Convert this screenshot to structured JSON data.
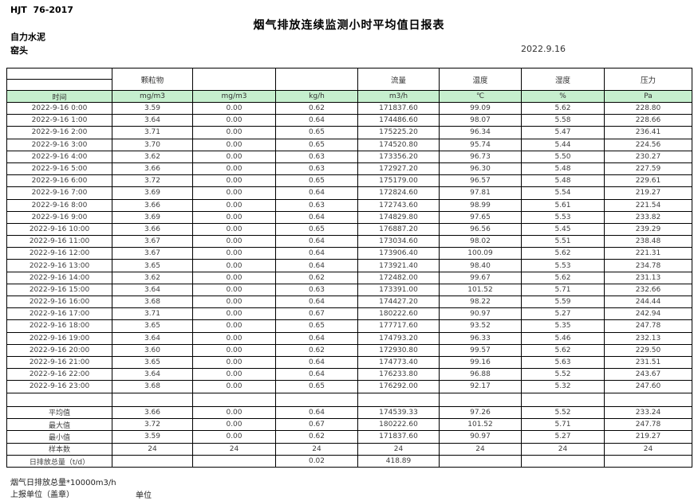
{
  "page": {
    "doc_code": "HJT  76-2017",
    "title": "烟气排放连续监测小时平均值日报表",
    "company": "自力水泥",
    "location": "窑头",
    "date": "2022.9.16"
  },
  "table": {
    "group_headers": [
      "",
      "颗粒物",
      "",
      "",
      "流量",
      "温度",
      "湿度",
      "压力"
    ],
    "unit_row": [
      "时间",
      "mg/m3",
      "mg/m3",
      "kg/h",
      "m3/h",
      "℃",
      "%",
      "Pa"
    ],
    "header_fill": "#c6efce",
    "rows": [
      [
        "2022-9-16 0:00",
        "3.59",
        "0.00",
        "0.62",
        "171837.60",
        "99.09",
        "5.62",
        "228.80"
      ],
      [
        "2022-9-16 1:00",
        "3.64",
        "0.00",
        "0.64",
        "174486.60",
        "98.07",
        "5.58",
        "228.66"
      ],
      [
        "2022-9-16 2:00",
        "3.71",
        "0.00",
        "0.65",
        "175225.20",
        "96.34",
        "5.47",
        "236.41"
      ],
      [
        "2022-9-16 3:00",
        "3.70",
        "0.00",
        "0.65",
        "174520.80",
        "95.74",
        "5.44",
        "224.56"
      ],
      [
        "2022-9-16 4:00",
        "3.62",
        "0.00",
        "0.63",
        "173356.20",
        "96.73",
        "5.50",
        "230.27"
      ],
      [
        "2022-9-16 5:00",
        "3.66",
        "0.00",
        "0.63",
        "172927.20",
        "96.30",
        "5.48",
        "227.59"
      ],
      [
        "2022-9-16 6:00",
        "3.72",
        "0.00",
        "0.65",
        "175179.00",
        "96.57",
        "5.48",
        "229.61"
      ],
      [
        "2022-9-16 7:00",
        "3.69",
        "0.00",
        "0.64",
        "172824.60",
        "97.81",
        "5.54",
        "219.27"
      ],
      [
        "2022-9-16 8:00",
        "3.66",
        "0.00",
        "0.63",
        "172743.60",
        "98.99",
        "5.61",
        "221.54"
      ],
      [
        "2022-9-16 9:00",
        "3.69",
        "0.00",
        "0.64",
        "174829.80",
        "97.65",
        "5.53",
        "233.82"
      ],
      [
        "2022-9-16 10:00",
        "3.66",
        "0.00",
        "0.65",
        "176887.20",
        "96.56",
        "5.45",
        "239.29"
      ],
      [
        "2022-9-16 11:00",
        "3.67",
        "0.00",
        "0.64",
        "173034.60",
        "98.02",
        "5.51",
        "238.48"
      ],
      [
        "2022-9-16 12:00",
        "3.67",
        "0.00",
        "0.64",
        "173906.40",
        "100.09",
        "5.62",
        "221.31"
      ],
      [
        "2022-9-16 13:00",
        "3.65",
        "0.00",
        "0.64",
        "173921.40",
        "98.40",
        "5.53",
        "234.78"
      ],
      [
        "2022-9-16 14:00",
        "3.62",
        "0.00",
        "0.62",
        "172482.00",
        "99.67",
        "5.62",
        "231.13"
      ],
      [
        "2022-9-16 15:00",
        "3.64",
        "0.00",
        "0.63",
        "173391.00",
        "101.52",
        "5.71",
        "232.66"
      ],
      [
        "2022-9-16 16:00",
        "3.68",
        "0.00",
        "0.64",
        "174427.20",
        "98.22",
        "5.59",
        "244.44"
      ],
      [
        "2022-9-16 17:00",
        "3.71",
        "0.00",
        "0.67",
        "180222.60",
        "90.97",
        "5.27",
        "242.94"
      ],
      [
        "2022-9-16 18:00",
        "3.65",
        "0.00",
        "0.65",
        "177717.60",
        "93.52",
        "5.35",
        "247.78"
      ],
      [
        "2022-9-16 19:00",
        "3.64",
        "0.00",
        "0.64",
        "174793.20",
        "96.33",
        "5.46",
        "232.13"
      ],
      [
        "2022-9-16 20:00",
        "3.60",
        "0.00",
        "0.62",
        "172930.80",
        "99.57",
        "5.62",
        "229.50"
      ],
      [
        "2022-9-16 21:00",
        "3.65",
        "0.00",
        "0.64",
        "174773.40",
        "99.16",
        "5.63",
        "231.51"
      ],
      [
        "2022-9-16 22:00",
        "3.64",
        "0.00",
        "0.64",
        "176233.80",
        "96.88",
        "5.52",
        "243.67"
      ],
      [
        "2022-9-16 23:00",
        "3.68",
        "0.00",
        "0.65",
        "176292.00",
        "92.17",
        "5.32",
        "247.60"
      ]
    ],
    "summary": [
      [
        "平均值",
        "3.66",
        "0.00",
        "0.64",
        "174539.33",
        "97.26",
        "5.52",
        "233.24"
      ],
      [
        "最大值",
        "3.72",
        "0.00",
        "0.67",
        "180222.60",
        "101.52",
        "5.71",
        "247.78"
      ],
      [
        "最小值",
        "3.59",
        "0.00",
        "0.62",
        "171837.60",
        "90.97",
        "5.27",
        "219.27"
      ],
      [
        "样本数",
        "24",
        "24",
        "24",
        "24",
        "24",
        "24",
        "24"
      ],
      [
        "日排放总量（t/d）",
        "",
        "",
        "0.02",
        "418.89",
        "",
        "",
        ""
      ]
    ]
  },
  "footer": {
    "note": "烟气日排放总量*10000m3/h",
    "report_unit": "上报单位（盖章）",
    "unit_label": "单位"
  }
}
